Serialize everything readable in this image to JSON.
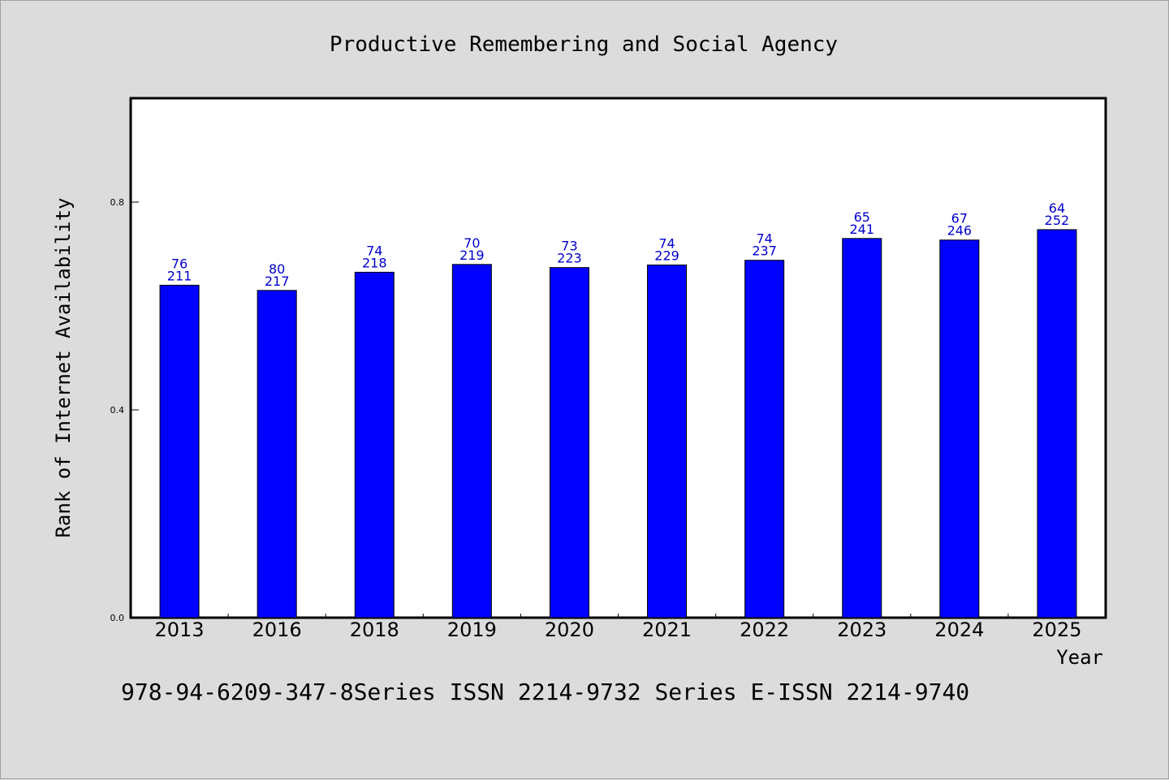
{
  "footer": "978-94-6209-347-8Series ISSN 2214-9732 Series E-ISSN 2214-9740",
  "chart_data": {
    "type": "bar",
    "title": "Productive Remembering and Social Agency",
    "xlabel": "Year",
    "ylabel": "Rank of Internet Availability",
    "categories": [
      "2013",
      "2016",
      "2018",
      "2019",
      "2020",
      "2021",
      "2022",
      "2023",
      "2024",
      "2025"
    ],
    "series": [
      {
        "values": [
          0.64,
          0.63,
          0.665,
          0.68,
          0.674,
          0.679,
          0.688,
          0.73,
          0.727,
          0.747
        ],
        "color": "#0000ff",
        "labels_top": [
          "76",
          "80",
          "74",
          "70",
          "73",
          "74",
          "74",
          "65",
          "67",
          "64"
        ],
        "labels_bottom": [
          "211",
          "217",
          "218",
          "219",
          "223",
          "229",
          "237",
          "241",
          "246",
          "252"
        ]
      }
    ],
    "ylim": [
      0,
      1.0
    ],
    "yticks": [
      0.0,
      0.4,
      0.8
    ],
    "ytick_labels": [
      "0.0",
      "0.4",
      "0.8"
    ],
    "grid": false,
    "legend": "none"
  }
}
